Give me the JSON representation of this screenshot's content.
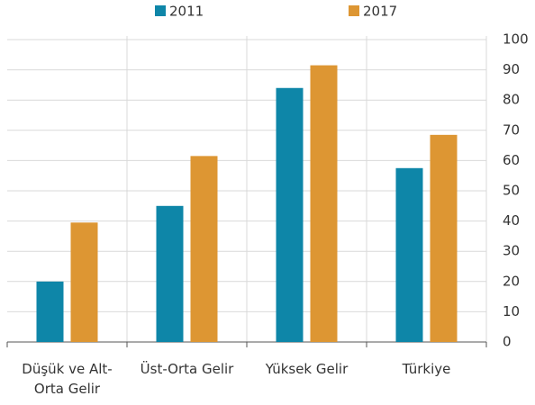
{
  "chart_data": {
    "type": "bar",
    "categories": [
      "Düşük ve Alt-Orta Gelir",
      "Üst-Orta Gelir",
      "Yüksek Gelir",
      "Türkiye"
    ],
    "series": [
      {
        "name": "2011",
        "color": "#0e86a8",
        "values": [
          20,
          45,
          84,
          57.5
        ]
      },
      {
        "name": "2017",
        "color": "#dd9633",
        "values": [
          39.5,
          61.5,
          91.5,
          68.5
        ]
      }
    ],
    "ylim": [
      0,
      100
    ],
    "yticks": [
      0,
      10,
      20,
      30,
      40,
      50,
      60,
      70,
      80,
      90,
      100
    ],
    "grid": true,
    "y_axis_side": "right",
    "legend": "top"
  }
}
